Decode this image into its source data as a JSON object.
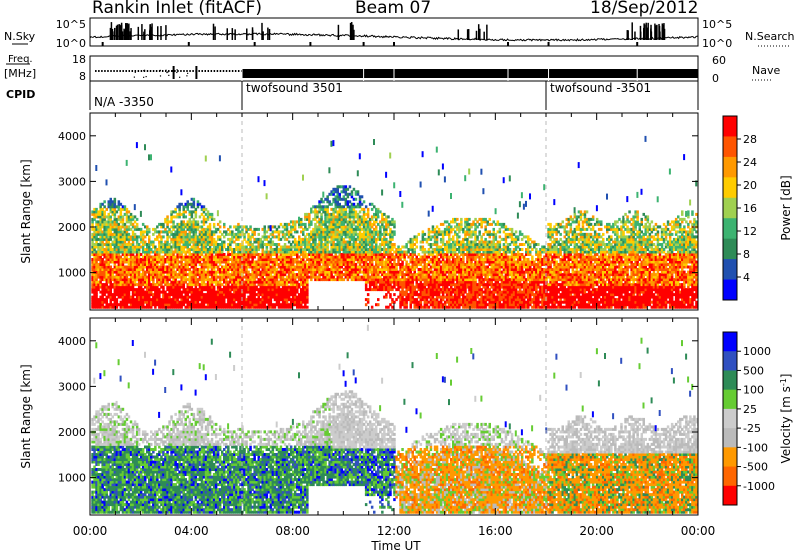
{
  "header": {
    "title": "Rankin Inlet (fitACF)",
    "beam": "Beam 07",
    "date": "18/Sep/2012"
  },
  "noise_panel": {
    "left_label": "N.Sky",
    "right_label": "N.Search",
    "tick_top": "10^5",
    "tick_bottom": "10^0",
    "right_tick_top": "10^5",
    "right_tick_bottom": "10^0"
  },
  "freq_panel": {
    "left_label_line1": "Freq.",
    "left_label_line2": "[MHz]",
    "right_label": "Nave",
    "freq_ticks": [
      "18",
      "8"
    ],
    "nave_ticks": [
      "60",
      "0"
    ]
  },
  "cpid_panel": {
    "label": "CPID",
    "segments": [
      {
        "name": "N/A -3350",
        "start_hour": 0
      },
      {
        "name": "twofsound 3501",
        "start_hour": 6
      },
      {
        "name": "twofsound -3501",
        "start_hour": 18
      }
    ]
  },
  "colors": {
    "power_scale": [
      "#0000ff",
      "#2050b0",
      "#2e8b57",
      "#3cb371",
      "#a0d050",
      "#ffcc00",
      "#ff9900",
      "#ff5500",
      "#ff0000"
    ],
    "velocity_scale": [
      "#0000ff",
      "#3050c0",
      "#2e8b57",
      "#66cc33",
      "#cccccc",
      "#bbbbbb",
      "#ff9900",
      "#ff6600",
      "#ff0000"
    ]
  },
  "chart_data": [
    {
      "type": "heatmap",
      "quantity": "power",
      "ylabel": "Slant Range [km]",
      "ylim": [
        180,
        4500
      ],
      "xlim_hours": [
        0,
        24
      ],
      "yticks": [
        1000,
        2000,
        3000,
        4000
      ],
      "colorbar": {
        "label": "Power [dB]",
        "range": [
          0,
          30
        ],
        "ticks": [
          "28",
          "24",
          "20",
          "16",
          "12",
          "8",
          "4"
        ]
      }
    },
    {
      "type": "heatmap",
      "quantity": "velocity",
      "ylabel": "Slant Range [km]",
      "ylim": [
        180,
        4500
      ],
      "xlim_hours": [
        0,
        24
      ],
      "yticks": [
        1000,
        2000,
        3000,
        4000
      ],
      "colorbar": {
        "label": "Velocity [m s",
        "label_sup": "-1",
        "label_end": "]",
        "ticks": [
          "1000",
          "500",
          "100",
          "25",
          "-25",
          "-100",
          "-500",
          "-1000"
        ]
      }
    }
  ],
  "xaxis": {
    "label": "Time UT",
    "ticks": [
      "00:00",
      "04:00",
      "08:00",
      "12:00",
      "16:00",
      "20:00",
      "00:00"
    ]
  }
}
